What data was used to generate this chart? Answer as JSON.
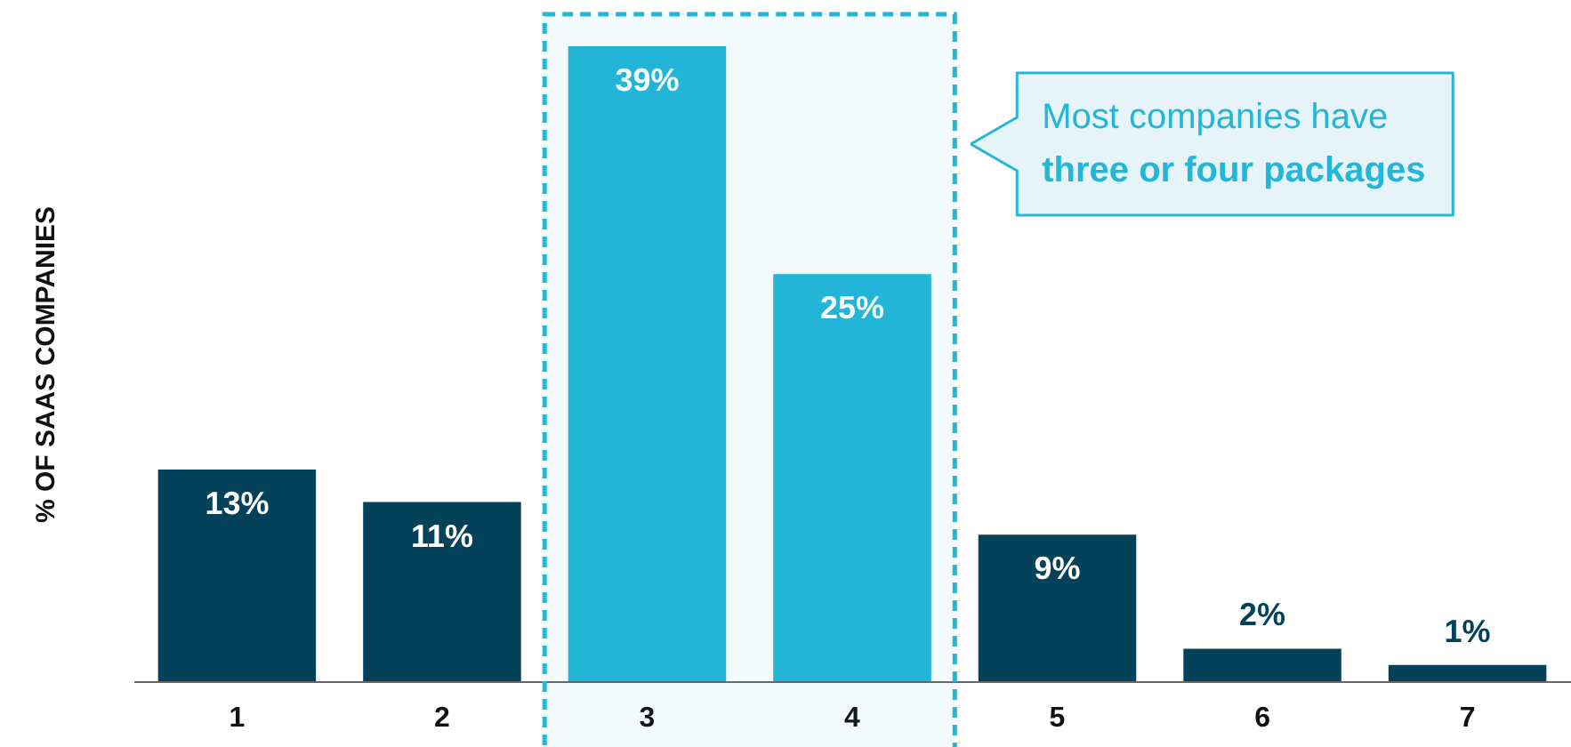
{
  "chart_data": {
    "type": "bar",
    "ylabel": "% OF SAAS COMPANIES",
    "categories": [
      "1",
      "2",
      "3",
      "4",
      "5",
      "6",
      "7"
    ],
    "values": [
      13,
      11,
      39,
      25,
      9,
      2,
      1
    ],
    "value_labels": [
      "13%",
      "11%",
      "39%",
      "25%",
      "9%",
      "2%",
      "1%"
    ],
    "colors": [
      "#034259",
      "#034259",
      "#23b6d7",
      "#23b6d7",
      "#034259",
      "#034259",
      "#034259"
    ],
    "bands": [
      {
        "axis": "x",
        "from": "3",
        "to": "4",
        "color": "#23b6d7"
      }
    ],
    "annotations": [
      "Most companies have",
      "three or four packages"
    ],
    "grid": false
  }
}
